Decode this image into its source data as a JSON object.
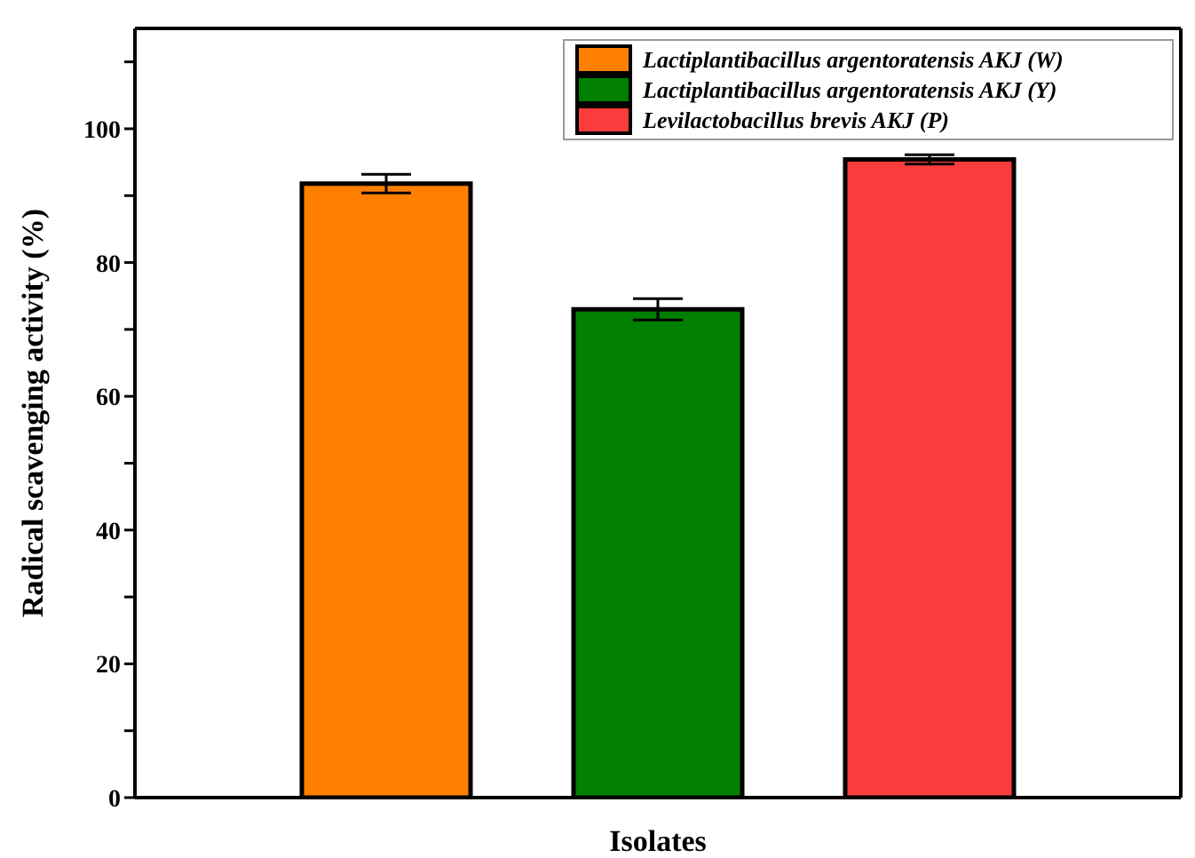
{
  "chart_data": {
    "type": "bar",
    "xlabel": "Isolates",
    "ylabel": "Radical scavenging activity (%)",
    "categories": [
      null
    ],
    "series": [
      {
        "name": "Lactiplantibacillus argentoratensis AKJ (W)",
        "color": "#ff8000",
        "values": [
          91.8
        ],
        "errors": [
          1.4
        ]
      },
      {
        "name": "Lactiplantibacillus argentoratensis AKJ (Y)",
        "color": "#007f00",
        "values": [
          73.0
        ],
        "errors": [
          1.6
        ]
      },
      {
        "name": "Levilactobacillus brevis AKJ (P)",
        "color": "#fa3c3c",
        "values": [
          95.4
        ],
        "errors": [
          0.7
        ]
      }
    ],
    "ylim": [
      0,
      115
    ],
    "yticks": [
      0,
      {
        "value": 10,
        "label": null
      },
      20,
      {
        "value": 30,
        "label": null
      },
      40,
      {
        "value": 50,
        "label": null
      },
      60,
      {
        "value": 70,
        "label": null
      },
      80,
      {
        "value": 90,
        "label": null
      },
      100,
      {
        "value": 110,
        "label": null
      }
    ],
    "legend": "top right",
    "grid": false
  }
}
